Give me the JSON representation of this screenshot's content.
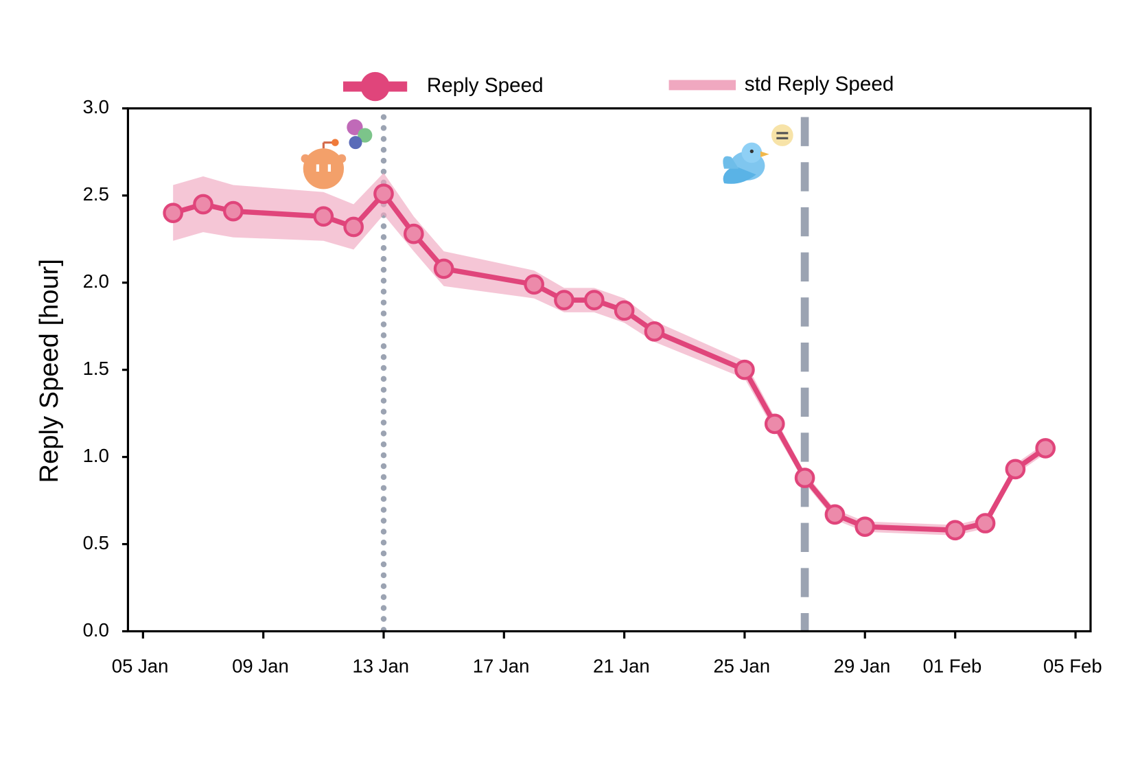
{
  "chart_data": {
    "type": "line",
    "y_label": "Reply Speed [hour]",
    "x": [
      "06 Jan",
      "07 Jan",
      "08 Jan",
      "11 Jan",
      "12 Jan",
      "13 Jan",
      "14 Jan",
      "15 Jan",
      "18 Jan",
      "19 Jan",
      "20 Jan",
      "21 Jan",
      "22 Jan",
      "25 Jan",
      "26 Jan",
      "27 Jan",
      "28 Jan",
      "29 Jan",
      "01 Feb",
      "02 Feb",
      "03 Feb",
      "04 Feb"
    ],
    "series": [
      {
        "name": "Reply Speed",
        "color": "#e0457b",
        "values": [
          2.4,
          2.45,
          2.41,
          2.38,
          2.32,
          2.51,
          2.28,
          2.08,
          1.99,
          1.9,
          1.9,
          1.84,
          1.72,
          1.5,
          1.19,
          0.88,
          0.67,
          0.6,
          0.58,
          0.62,
          0.93,
          1.05
        ]
      },
      {
        "name": "std Reply Speed",
        "color": "#f0a8c0",
        "values": [
          0.16,
          0.16,
          0.15,
          0.14,
          0.13,
          0.12,
          0.1,
          0.1,
          0.08,
          0.07,
          0.07,
          0.07,
          0.06,
          0.05,
          0.04,
          0.03,
          0.03,
          0.03,
          0.03,
          0.03,
          0.03,
          0.03
        ]
      }
    ],
    "vlines": [
      {
        "x": "13 Jan",
        "style": "dotted",
        "color": "#9ba3b2"
      },
      {
        "x": "27 Jan",
        "style": "dashed",
        "color": "#9ba3b2"
      }
    ],
    "xlim": [
      "04 Jan",
      "06 Feb"
    ],
    "xticks": [
      "05 Jan",
      "09 Jan",
      "13 Jan",
      "17 Jan",
      "21 Jan",
      "25 Jan",
      "29 Jan",
      "01 Feb",
      "05 Feb"
    ],
    "ylim": [
      0,
      3
    ],
    "yticks": [
      {
        "value": 0,
        "label": "0.0"
      },
      {
        "value": 0.5,
        "label": "0.5"
      },
      {
        "value": 1,
        "label": "1.0"
      },
      {
        "value": 1.5,
        "label": "1.5"
      },
      {
        "value": 2,
        "label": "2.0"
      },
      {
        "value": 2.5,
        "label": "2.5"
      },
      {
        "value": 3,
        "label": "3.0"
      }
    ],
    "grid": false
  }
}
